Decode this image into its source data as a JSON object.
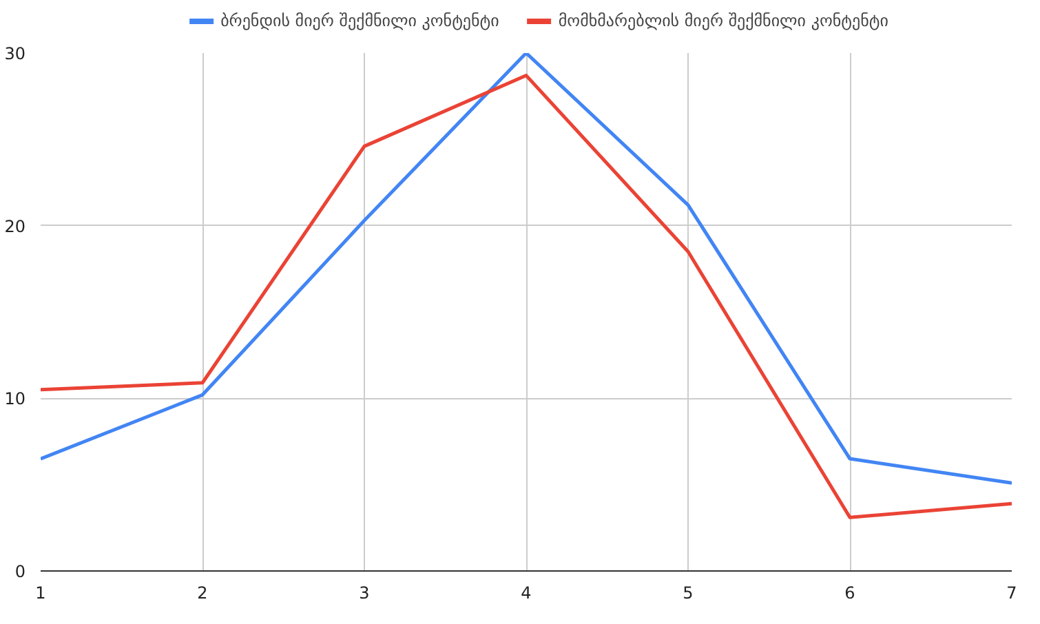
{
  "chart_data": {
    "type": "line",
    "x": [
      1,
      2,
      3,
      4,
      5,
      6,
      7
    ],
    "series": [
      {
        "name": "ბრენდის მიერ შექმნილი კონტენტი",
        "color": "#4285f4",
        "values": [
          6.5,
          10.2,
          20.3,
          30,
          21.2,
          6.5,
          5.1
        ]
      },
      {
        "name": "მომხმარებლის მიერ შექმნილი კონტენტი",
        "color": "#ea4335",
        "values": [
          10.5,
          10.9,
          24.6,
          28.7,
          18.5,
          3.1,
          3.9
        ]
      }
    ],
    "xlim": [
      1,
      7
    ],
    "xticks": [
      1,
      2,
      3,
      4,
      5,
      6,
      7
    ],
    "ylim": [
      0,
      30
    ],
    "yticks": [
      0,
      10,
      20,
      30
    ],
    "grid": true,
    "legend": "top",
    "marker": "none",
    "line_style": "solid"
  }
}
